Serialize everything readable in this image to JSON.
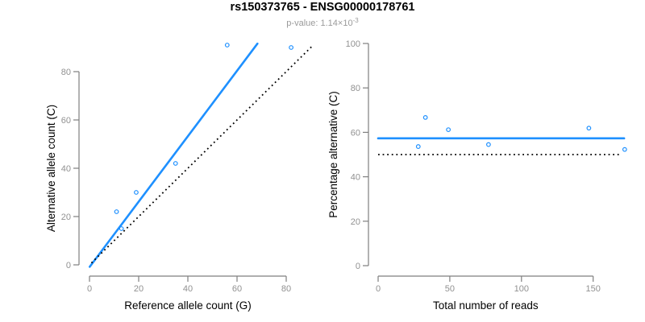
{
  "header": {
    "title": "rs150373765 - ENSG00000178761",
    "subtitle_prefix": "p-value: 1.14×10",
    "subtitle_exponent": "-3"
  },
  "colors": {
    "accent_blue": "#1E90FF",
    "dotted_black": "#000000",
    "axis_gray": "#7f7f7f",
    "tick_label_gray": "#919191",
    "axis_title_black": "#000000",
    "subtitle_gray": "#9a9a9a"
  },
  "chart_data": [
    {
      "type": "scatter",
      "panel": "left",
      "xlabel": "Reference allele count (G)",
      "ylabel": "Alternative allele count (C)",
      "xticks": [
        0,
        20,
        40,
        60,
        80
      ],
      "yticks": [
        0,
        20,
        40,
        60,
        80
      ],
      "xlim": [
        0,
        90
      ],
      "ylim": [
        -1,
        95
      ],
      "grid": false,
      "points": {
        "x": [
          11,
          13,
          19,
          35,
          56,
          82
        ],
        "y": [
          22,
          15,
          30,
          42,
          91,
          90
        ]
      },
      "lines": [
        {
          "name": "fit-line",
          "style": "solid",
          "color": "#1E90FF",
          "x1": 0.1,
          "y1": -0.8,
          "x2": 68.3,
          "y2": 91.6
        },
        {
          "name": "identity-line",
          "style": "dotted",
          "color": "#000000",
          "x1": 0.8,
          "y1": 0.8,
          "x2": 90.3,
          "y2": 90.3
        }
      ]
    },
    {
      "type": "scatter",
      "panel": "right",
      "xlabel": "Total number of reads",
      "ylabel": "Percentage alternative (C)",
      "xticks": [
        0,
        50,
        100,
        150
      ],
      "yticks": [
        0,
        20,
        40,
        60,
        80,
        100
      ],
      "xlim": [
        0,
        172
      ],
      "ylim": [
        0,
        100
      ],
      "grid": false,
      "points": {
        "x": [
          28,
          33,
          49,
          77,
          147,
          172
        ],
        "y": [
          53.6,
          66.7,
          61.2,
          54.5,
          61.9,
          52.3
        ]
      },
      "lines": [
        {
          "name": "overall-percentage-line",
          "style": "solid",
          "color": "#1E90FF",
          "x1": 0,
          "y1": 57.3,
          "x2": 171.6,
          "y2": 57.3
        },
        {
          "name": "expected-50-percent-line",
          "style": "dotted",
          "color": "#000000",
          "x1": 0,
          "y1": 50,
          "x2": 169.3,
          "y2": 50
        }
      ]
    }
  ]
}
